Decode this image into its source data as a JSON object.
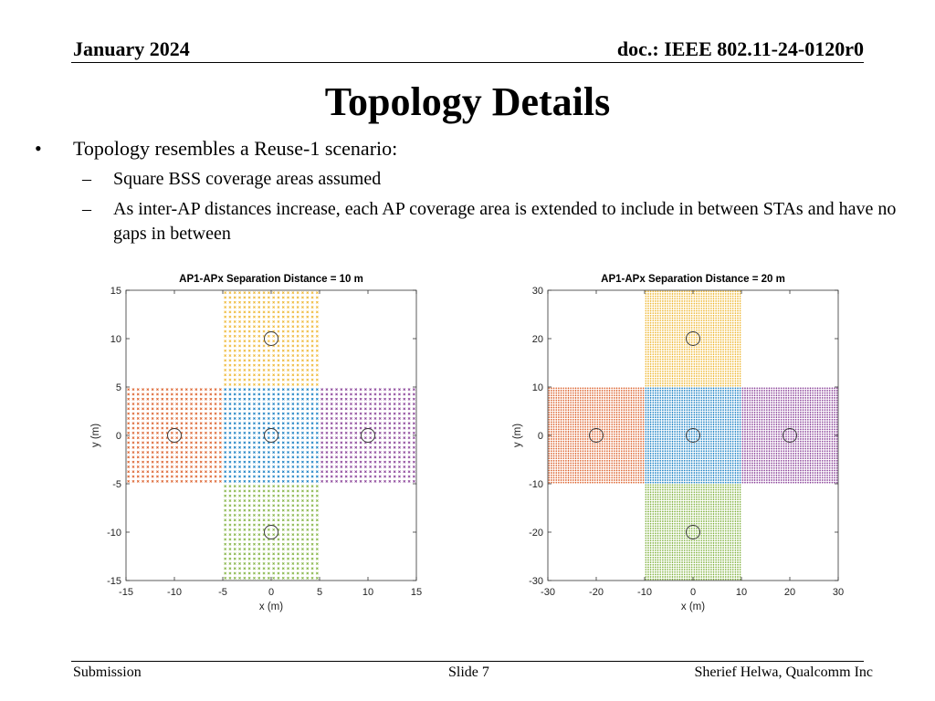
{
  "header": {
    "date": "January 2024",
    "doc": "doc.: IEEE 802.11-24-0120r0"
  },
  "title": "Topology Details",
  "bullets": {
    "main": "Topology resembles a Reuse-1 scenario:",
    "subs": [
      "Square BSS coverage areas assumed",
      "As inter-AP distances increase, each AP coverage area is extended to include in between STAs and have no gaps in between"
    ]
  },
  "footer": {
    "left": "Submission",
    "center": "Slide 7",
    "right": "Sherief Helwa, Qualcomm Inc"
  },
  "colors": {
    "ap1": "#0072BD",
    "ap2": "#D95319",
    "ap3": "#EDB120",
    "ap4": "#7E2F8E",
    "ap5": "#77AC30"
  },
  "chart_data": [
    {
      "type": "scatter",
      "title": "AP1-APx Separation Distance  = 10 m",
      "xlabel": "x (m)",
      "ylabel": "y (m)",
      "xlim": [
        -15,
        15
      ],
      "ylim": [
        -15,
        15
      ],
      "xticks": [
        -15,
        -10,
        -5,
        0,
        5,
        10,
        15
      ],
      "yticks": [
        -15,
        -10,
        -5,
        0,
        5,
        10,
        15
      ],
      "grid": false,
      "legend": "none",
      "marker": "x",
      "sta_spacing": 0.5,
      "ap_positions": [
        [
          0,
          0
        ],
        [
          -10,
          0
        ],
        [
          0,
          10
        ],
        [
          10,
          0
        ],
        [
          0,
          -10
        ]
      ],
      "ap_marker": "o",
      "coverage_half_width": 5,
      "series_colors": [
        "#0072BD",
        "#D95319",
        "#EDB120",
        "#7E2F8E",
        "#77AC30"
      ]
    },
    {
      "type": "scatter",
      "title": "AP1-APx Separation Distance  = 20 m",
      "xlabel": "x (m)",
      "ylabel": "y (m)",
      "xlim": [
        -30,
        30
      ],
      "ylim": [
        -30,
        30
      ],
      "xticks": [
        -30,
        -20,
        -10,
        0,
        10,
        20,
        30
      ],
      "yticks": [
        -30,
        -20,
        -10,
        0,
        10,
        20,
        30
      ],
      "grid": false,
      "legend": "none",
      "marker": "x",
      "sta_spacing": 0.5,
      "ap_positions": [
        [
          0,
          0
        ],
        [
          -20,
          0
        ],
        [
          0,
          20
        ],
        [
          20,
          0
        ],
        [
          0,
          -20
        ]
      ],
      "ap_marker": "o",
      "coverage_half_width": 10,
      "series_colors": [
        "#0072BD",
        "#D95319",
        "#EDB120",
        "#7E2F8E",
        "#77AC30"
      ]
    }
  ]
}
